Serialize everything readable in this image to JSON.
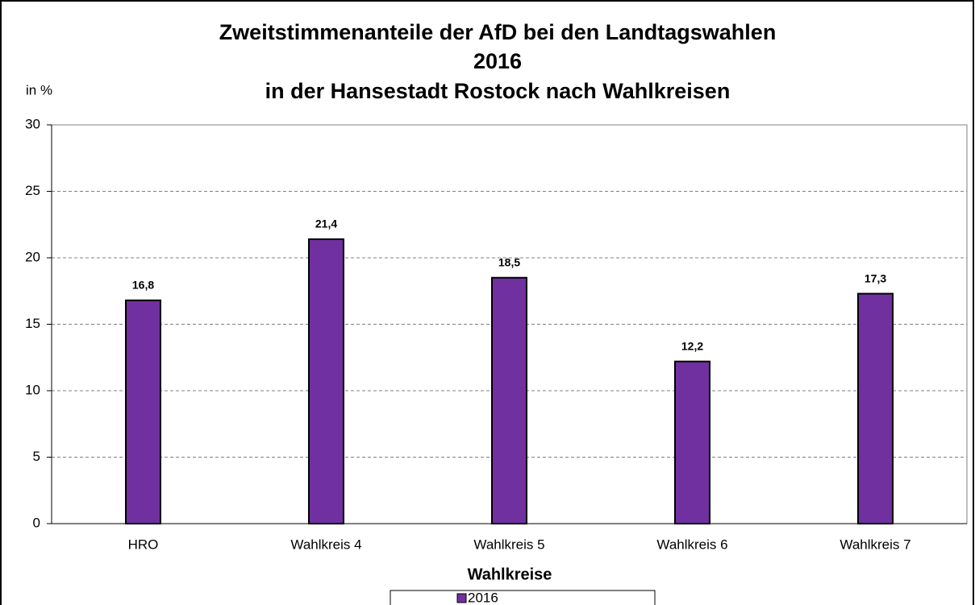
{
  "chart_data": {
    "type": "bar",
    "title": [
      "Zweitstimmenanteile der AfD bei den Landtagswahlen",
      "2016",
      "in der Hansestadt Rostock nach Wahlkreisen"
    ],
    "y_label": "in %",
    "x_label": "Wahlkreise",
    "categories": [
      "HRO",
      "Wahlkreis 4",
      "Wahlkreis 5",
      "Wahlkreis 6",
      "Wahlkreis 7"
    ],
    "series": [
      {
        "name": "2016",
        "color": "#7030a0",
        "values": [
          16.8,
          21.4,
          18.5,
          12.2,
          17.3
        ],
        "value_labels": [
          "16,8",
          "21,4",
          "18,5",
          "12,2",
          "17,3"
        ]
      }
    ],
    "ylim": [
      0,
      30
    ],
    "yticks": [
      0,
      5,
      10,
      15,
      20,
      25,
      30
    ],
    "grid": true,
    "legend": "bottom"
  }
}
